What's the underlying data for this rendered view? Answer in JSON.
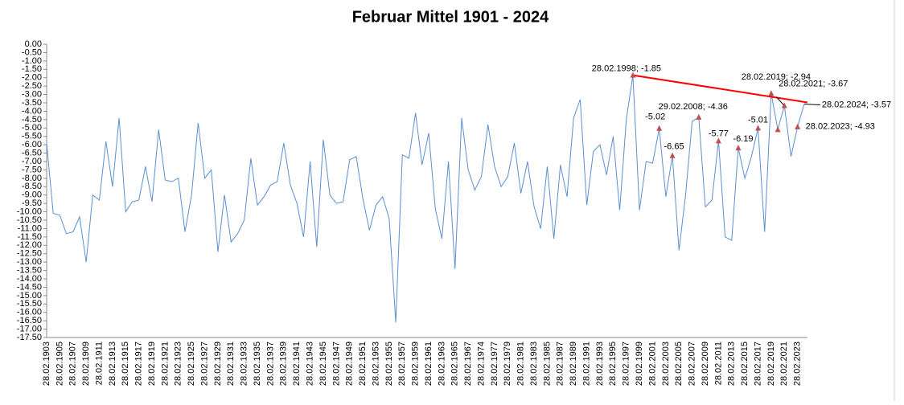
{
  "chart_data": {
    "type": "line",
    "title": "Februar Mittel 1901 - 2024",
    "categories": [
      "28.02.1903",
      null,
      "28.02.1905",
      null,
      "28.02.1907",
      null,
      "28.02.1909",
      null,
      "28.02.1911",
      null,
      "28.02.1913",
      null,
      "28.02.1915",
      null,
      "28.02.1917",
      null,
      "28.02.1919",
      null,
      "28.02.1921",
      null,
      "28.02.1923",
      null,
      "28.02.1925",
      null,
      "28.02.1927",
      null,
      "28.02.1929",
      null,
      "28.02.1931",
      null,
      "28.02.1933",
      null,
      "28.02.1935",
      null,
      "28.02.1937",
      null,
      "28.02.1939",
      null,
      "28.02.1941",
      null,
      "28.02.1943",
      null,
      "28.02.1945",
      null,
      "28.02.1947",
      null,
      "28.02.1949",
      null,
      "28.02.1951",
      null,
      "28.02.1953",
      null,
      "28.02.1955",
      null,
      "28.02.1957",
      null,
      "28.02.1959",
      null,
      "28.02.1961",
      null,
      "28.02.1963",
      null,
      "28.02.1965",
      null,
      "28.02.1967",
      null,
      "28.02.1974",
      null,
      "28.02.1977",
      null,
      "28.02.1979",
      null,
      "28.02.1981",
      null,
      "28.02.1983",
      null,
      "28.02.1985",
      null,
      "28.02.1987",
      null,
      "28.02.1989",
      null,
      "28.02.1991",
      null,
      "28.02.1993",
      null,
      "28.02.1995",
      null,
      "28.02.1997",
      null,
      "28.02.1999",
      null,
      "28.02.2001",
      null,
      "28.02.2003",
      null,
      "28.02.2005",
      null,
      "28.02.2007",
      null,
      "28.02.2009",
      null,
      "28.02.2011",
      null,
      "28.02.2013",
      null,
      "28.02.2015",
      null,
      "28.02.2017",
      null,
      "28.02.2019",
      null,
      "28.02.2021",
      null,
      "28.02.2023",
      null
    ],
    "series": [
      {
        "color": "#5b8fd0",
        "marker_color": "#c0504d",
        "values": [
          -5.9,
          -10.1,
          -10.2,
          -11.3,
          -11.2,
          -10.3,
          -13.0,
          -9.0,
          -9.3,
          -5.8,
          -8.5,
          -4.4,
          -10.0,
          -9.4,
          -9.3,
          -7.3,
          -9.4,
          -5.1,
          -8.1,
          -8.2,
          -8.0,
          -11.2,
          -9.0,
          -4.7,
          -8.0,
          -7.5,
          -12.4,
          -9.0,
          -11.8,
          -11.3,
          -10.5,
          -6.8,
          -9.6,
          -9.1,
          -8.4,
          -8.2,
          -5.9,
          -8.4,
          -9.5,
          -11.5,
          -7.0,
          -12.1,
          -5.7,
          -9.0,
          -9.5,
          -9.4,
          -6.9,
          -6.7,
          -9.2,
          -11.1,
          -9.6,
          -9.1,
          -10.4,
          -16.6,
          -6.6,
          -6.8,
          -4.1,
          -7.2,
          -5.3,
          -9.8,
          -11.6,
          -7.0,
          -13.4,
          -4.4,
          -7.5,
          -8.7,
          -7.9,
          -4.8,
          -7.3,
          -8.5,
          -7.9,
          -5.9,
          -8.9,
          -7.0,
          -9.7,
          -11.0,
          -7.3,
          -11.6,
          -7.2,
          -9.1,
          -4.4,
          -3.3,
          -9.6,
          -6.4,
          -6.0,
          -7.8,
          -5.5,
          -9.9,
          -4.5,
          -1.85,
          -9.9,
          -7.0,
          -7.1,
          -5.02,
          -9.1,
          -6.65,
          -12.3,
          -9.0,
          -4.6,
          -4.36,
          -9.7,
          -9.3,
          -5.77,
          -11.5,
          -11.7,
          -6.19,
          -8.0,
          -6.7,
          -5.01,
          -11.2,
          -2.94,
          -5.1,
          -3.67,
          -6.7,
          -4.93,
          -3.57
        ],
        "value_labels": [
          null,
          null,
          null,
          null,
          null,
          null,
          null,
          null,
          null,
          null,
          null,
          null,
          null,
          null,
          null,
          null,
          null,
          null,
          null,
          null,
          null,
          null,
          null,
          null,
          null,
          null,
          null,
          null,
          null,
          null,
          null,
          null,
          null,
          null,
          null,
          null,
          null,
          null,
          null,
          null,
          null,
          null,
          null,
          null,
          null,
          null,
          null,
          null,
          null,
          null,
          null,
          null,
          null,
          null,
          null,
          null,
          null,
          null,
          null,
          null,
          null,
          null,
          null,
          null,
          null,
          null,
          null,
          null,
          null,
          null,
          null,
          null,
          null,
          null,
          null,
          null,
          null,
          null,
          null,
          null,
          null,
          null,
          null,
          null,
          null,
          null,
          null,
          null,
          null,
          "28.02.1998; -1.85",
          null,
          null,
          null,
          "-5.02",
          null,
          "-6.65",
          null,
          null,
          null,
          "29.02.2008; -4.36",
          null,
          null,
          "-5.77",
          null,
          null,
          "-6.19",
          null,
          null,
          "-5.01",
          null,
          "28.02.2019; -2.94",
          null,
          "28.02.2021; -3.67",
          null,
          "28.02.2023; -4.93",
          "28.02.2024; -3.57"
        ],
        "markers": [
          89,
          93,
          95,
          99,
          102,
          105,
          108,
          110,
          111,
          112,
          114
        ]
      }
    ],
    "trend_color": "#ff0000",
    "ylim": [
      -17.5,
      0
    ],
    "yticks": [
      {
        "value": 0,
        "label": "0.00"
      },
      {
        "value": -0.5,
        "label": "-0.50"
      },
      {
        "value": -1,
        "label": "-1.00"
      },
      {
        "value": -1.5,
        "label": "-1.50"
      },
      {
        "value": -2,
        "label": "-2.00"
      },
      {
        "value": -2.5,
        "label": "-2.50"
      },
      {
        "value": -3,
        "label": "-3.00"
      },
      {
        "value": -3.5,
        "label": "-3.50"
      },
      {
        "value": -4,
        "label": "-4.00"
      },
      {
        "value": -4.5,
        "label": "-4.50"
      },
      {
        "value": -5,
        "label": "-5.00"
      },
      {
        "value": -5.5,
        "label": "-5.50"
      },
      {
        "value": -6,
        "label": "-6.00"
      },
      {
        "value": -6.5,
        "label": "-6.50"
      },
      {
        "value": -7,
        "label": "-7.00"
      },
      {
        "value": -7.5,
        "label": "-7.50"
      },
      {
        "value": -8,
        "label": "-8.00"
      },
      {
        "value": -8.5,
        "label": "-8.50"
      },
      {
        "value": -9,
        "label": "-9.00"
      },
      {
        "value": -9.5,
        "label": "-9.50"
      },
      {
        "value": -10,
        "label": "-10.00"
      },
      {
        "value": -10.5,
        "label": "-10.50"
      },
      {
        "value": -11,
        "label": "-11.00"
      },
      {
        "value": -11.5,
        "label": "-11.50"
      },
      {
        "value": -12,
        "label": "-12.00"
      },
      {
        "value": -12.5,
        "label": "-12.50"
      },
      {
        "value": -13,
        "label": "-13.00"
      },
      {
        "value": -13.5,
        "label": "-13.50"
      },
      {
        "value": -14,
        "label": "-14.00"
      },
      {
        "value": -14.5,
        "label": "-14.50"
      },
      {
        "value": -15,
        "label": "-15.00"
      },
      {
        "value": -15.5,
        "label": "-15.50"
      },
      {
        "value": -16,
        "label": "-16.00"
      },
      {
        "value": -16.5,
        "label": "-16.50"
      },
      {
        "value": -17,
        "label": "-17.00"
      },
      {
        "value": -17.5,
        "label": "-17.50"
      }
    ],
    "grid": false
  }
}
